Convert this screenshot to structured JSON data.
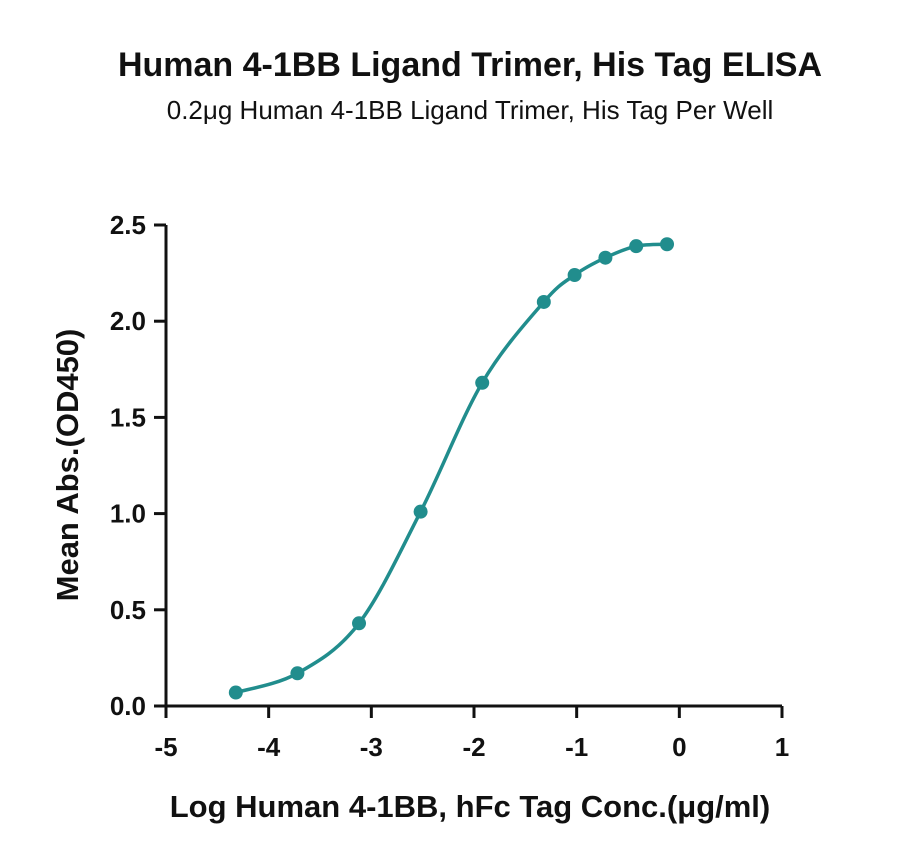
{
  "chart_data": {
    "type": "scatter",
    "title": "Human 4-1BB Ligand Trimer, His Tag ELISA",
    "subtitle": "0.2μg Human 4-1BB Ligand Trimer, His Tag Per Well",
    "xlabel": "Log Human 4-1BB, hFc Tag Conc.(μg/ml)",
    "ylabel": "Mean Abs.(OD450)",
    "xlim": [
      -5,
      1
    ],
    "ylim": [
      0,
      2.5
    ],
    "x_ticks": [
      "-5",
      "-4",
      "-3",
      "-2",
      "-1",
      "0",
      "1"
    ],
    "y_ticks": [
      "0.0",
      "0.5",
      "1.0",
      "1.5",
      "2.0",
      "2.5"
    ],
    "grid": false,
    "color": "#218d8d",
    "series": [
      {
        "x": [
          -4.32,
          -3.72,
          -3.12,
          -2.52,
          -1.92,
          -1.32,
          -1.02,
          -0.72,
          -0.42,
          -0.12
        ],
        "y": [
          0.07,
          0.17,
          0.43,
          1.01,
          1.68,
          2.1,
          2.24,
          2.33,
          2.39,
          2.4
        ]
      }
    ]
  }
}
